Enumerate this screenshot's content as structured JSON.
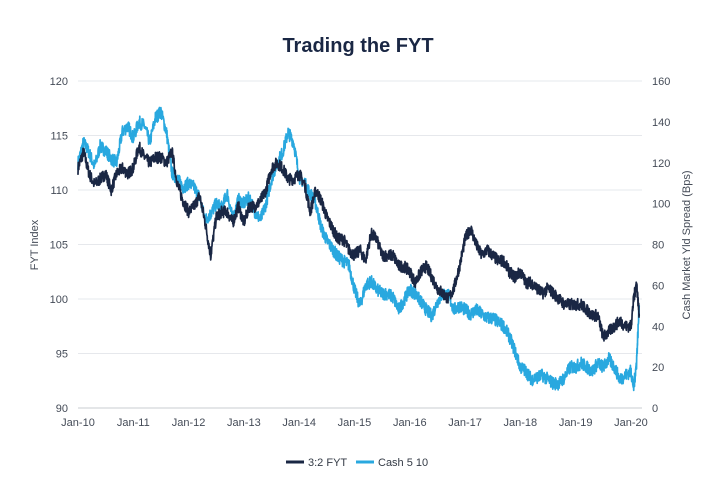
{
  "chart_data": {
    "type": "line",
    "title": "Trading the FYT",
    "xlabel": "",
    "ylabel": "FYT Index",
    "y2label": "Cash Market Yld Spread (Bps)",
    "x_tick_labels": [
      "Jan-10",
      "Jan-11",
      "Jan-12",
      "Jan-13",
      "Jan-14",
      "Jan-15",
      "Jan-16",
      "Jan-17",
      "Jan-18",
      "Jan-19",
      "Jan-20"
    ],
    "ylim": [
      90,
      120
    ],
    "yticks": [
      90,
      95,
      100,
      105,
      110,
      115,
      120
    ],
    "y2lim": [
      0,
      160
    ],
    "y2ticks": [
      0,
      20,
      40,
      60,
      80,
      100,
      120,
      140,
      160
    ],
    "x_range_years": [
      2010.0,
      2020.2
    ],
    "legend_position": "bottom-center",
    "grid": true,
    "series": [
      {
        "name": "3:2 FYT",
        "axis": "left",
        "color": "#1a2744",
        "x": [
          2010.0,
          2010.1,
          2010.2,
          2010.3,
          2010.4,
          2010.5,
          2010.6,
          2010.7,
          2010.8,
          2010.9,
          2011.0,
          2011.1,
          2011.2,
          2011.3,
          2011.4,
          2011.5,
          2011.6,
          2011.7,
          2011.8,
          2011.9,
          2012.0,
          2012.1,
          2012.2,
          2012.3,
          2012.4,
          2012.5,
          2012.6,
          2012.7,
          2012.8,
          2012.9,
          2013.0,
          2013.1,
          2013.2,
          2013.3,
          2013.4,
          2013.5,
          2013.6,
          2013.7,
          2013.8,
          2013.9,
          2014.0,
          2014.1,
          2014.2,
          2014.3,
          2014.4,
          2014.5,
          2014.6,
          2014.7,
          2014.8,
          2014.9,
          2015.0,
          2015.1,
          2015.2,
          2015.3,
          2015.4,
          2015.5,
          2015.6,
          2015.7,
          2015.8,
          2015.9,
          2016.0,
          2016.1,
          2016.2,
          2016.3,
          2016.4,
          2016.5,
          2016.6,
          2016.7,
          2016.8,
          2016.9,
          2017.0,
          2017.1,
          2017.2,
          2017.3,
          2017.4,
          2017.5,
          2017.6,
          2017.7,
          2017.8,
          2017.9,
          2018.0,
          2018.1,
          2018.2,
          2018.3,
          2018.4,
          2018.5,
          2018.6,
          2018.7,
          2018.8,
          2018.9,
          2019.0,
          2019.1,
          2019.2,
          2019.3,
          2019.4,
          2019.5,
          2019.6,
          2019.7,
          2019.8,
          2019.9,
          2020.0,
          2020.05,
          2020.1,
          2020.15
        ],
        "values": [
          112.0,
          113.5,
          111.5,
          110.5,
          111.0,
          111.5,
          110.0,
          111.5,
          112.0,
          111.5,
          112.0,
          114.0,
          113.0,
          112.5,
          113.0,
          113.0,
          112.5,
          113.5,
          110.5,
          109.0,
          108.0,
          108.5,
          109.5,
          107.0,
          104.0,
          107.5,
          108.0,
          108.0,
          107.0,
          108.5,
          107.0,
          108.5,
          108.5,
          109.0,
          110.0,
          112.0,
          112.5,
          112.0,
          111.0,
          111.0,
          111.5,
          110.5,
          108.0,
          110.0,
          109.0,
          107.5,
          106.5,
          105.5,
          105.5,
          104.5,
          104.0,
          104.5,
          103.5,
          106.0,
          105.5,
          104.0,
          104.0,
          104.0,
          103.0,
          103.0,
          102.5,
          101.5,
          102.5,
          103.0,
          102.0,
          101.0,
          100.5,
          100.0,
          101.0,
          103.0,
          105.5,
          106.5,
          105.0,
          104.0,
          104.5,
          104.0,
          103.5,
          103.5,
          102.5,
          102.0,
          102.5,
          101.5,
          101.5,
          101.0,
          100.5,
          101.0,
          100.5,
          100.0,
          99.5,
          99.5,
          99.5,
          99.5,
          99.0,
          98.5,
          98.5,
          96.5,
          97.0,
          97.5,
          98.0,
          97.5,
          97.5,
          100.0,
          101.5,
          98.5
        ]
      },
      {
        "name": "Cash 5 10",
        "axis": "right",
        "color": "#29a8df",
        "x": [
          2010.0,
          2010.1,
          2010.2,
          2010.3,
          2010.4,
          2010.5,
          2010.6,
          2010.7,
          2010.8,
          2010.9,
          2011.0,
          2011.1,
          2011.2,
          2011.3,
          2011.4,
          2011.5,
          2011.6,
          2011.7,
          2011.8,
          2011.9,
          2012.0,
          2012.1,
          2012.2,
          2012.3,
          2012.4,
          2012.5,
          2012.6,
          2012.7,
          2012.8,
          2012.9,
          2013.0,
          2013.1,
          2013.2,
          2013.3,
          2013.4,
          2013.5,
          2013.6,
          2013.7,
          2013.8,
          2013.9,
          2014.0,
          2014.1,
          2014.2,
          2014.3,
          2014.4,
          2014.5,
          2014.6,
          2014.7,
          2014.8,
          2014.9,
          2015.0,
          2015.1,
          2015.2,
          2015.3,
          2015.4,
          2015.5,
          2015.6,
          2015.7,
          2015.8,
          2015.9,
          2016.0,
          2016.1,
          2016.2,
          2016.3,
          2016.4,
          2016.5,
          2016.6,
          2016.7,
          2016.8,
          2016.9,
          2017.0,
          2017.1,
          2017.2,
          2017.3,
          2017.4,
          2017.5,
          2017.6,
          2017.7,
          2017.8,
          2017.9,
          2018.0,
          2018.1,
          2018.2,
          2018.3,
          2018.4,
          2018.5,
          2018.6,
          2018.7,
          2018.8,
          2018.9,
          2019.0,
          2019.1,
          2019.2,
          2019.3,
          2019.4,
          2019.5,
          2019.6,
          2019.7,
          2019.8,
          2019.9,
          2020.0,
          2020.05,
          2020.1,
          2020.15
        ],
        "values": [
          120,
          130,
          125,
          118,
          128,
          126,
          122,
          120,
          135,
          138,
          132,
          140,
          138,
          130,
          142,
          145,
          135,
          115,
          112,
          108,
          110,
          108,
          103,
          92,
          95,
          100,
          98,
          105,
          92,
          102,
          100,
          103,
          96,
          92,
          100,
          112,
          120,
          125,
          135,
          130,
          113,
          110,
          105,
          100,
          88,
          82,
          78,
          74,
          72,
          70,
          58,
          50,
          60,
          62,
          58,
          56,
          56,
          54,
          48,
          53,
          58,
          56,
          52,
          48,
          45,
          52,
          56,
          55,
          48,
          50,
          48,
          46,
          48,
          46,
          44,
          44,
          42,
          40,
          35,
          28,
          20,
          18,
          14,
          15,
          16,
          14,
          12,
          12,
          15,
          20,
          20,
          22,
          20,
          18,
          22,
          20,
          24,
          20,
          14,
          16,
          18,
          10,
          22,
          50
        ]
      }
    ]
  }
}
